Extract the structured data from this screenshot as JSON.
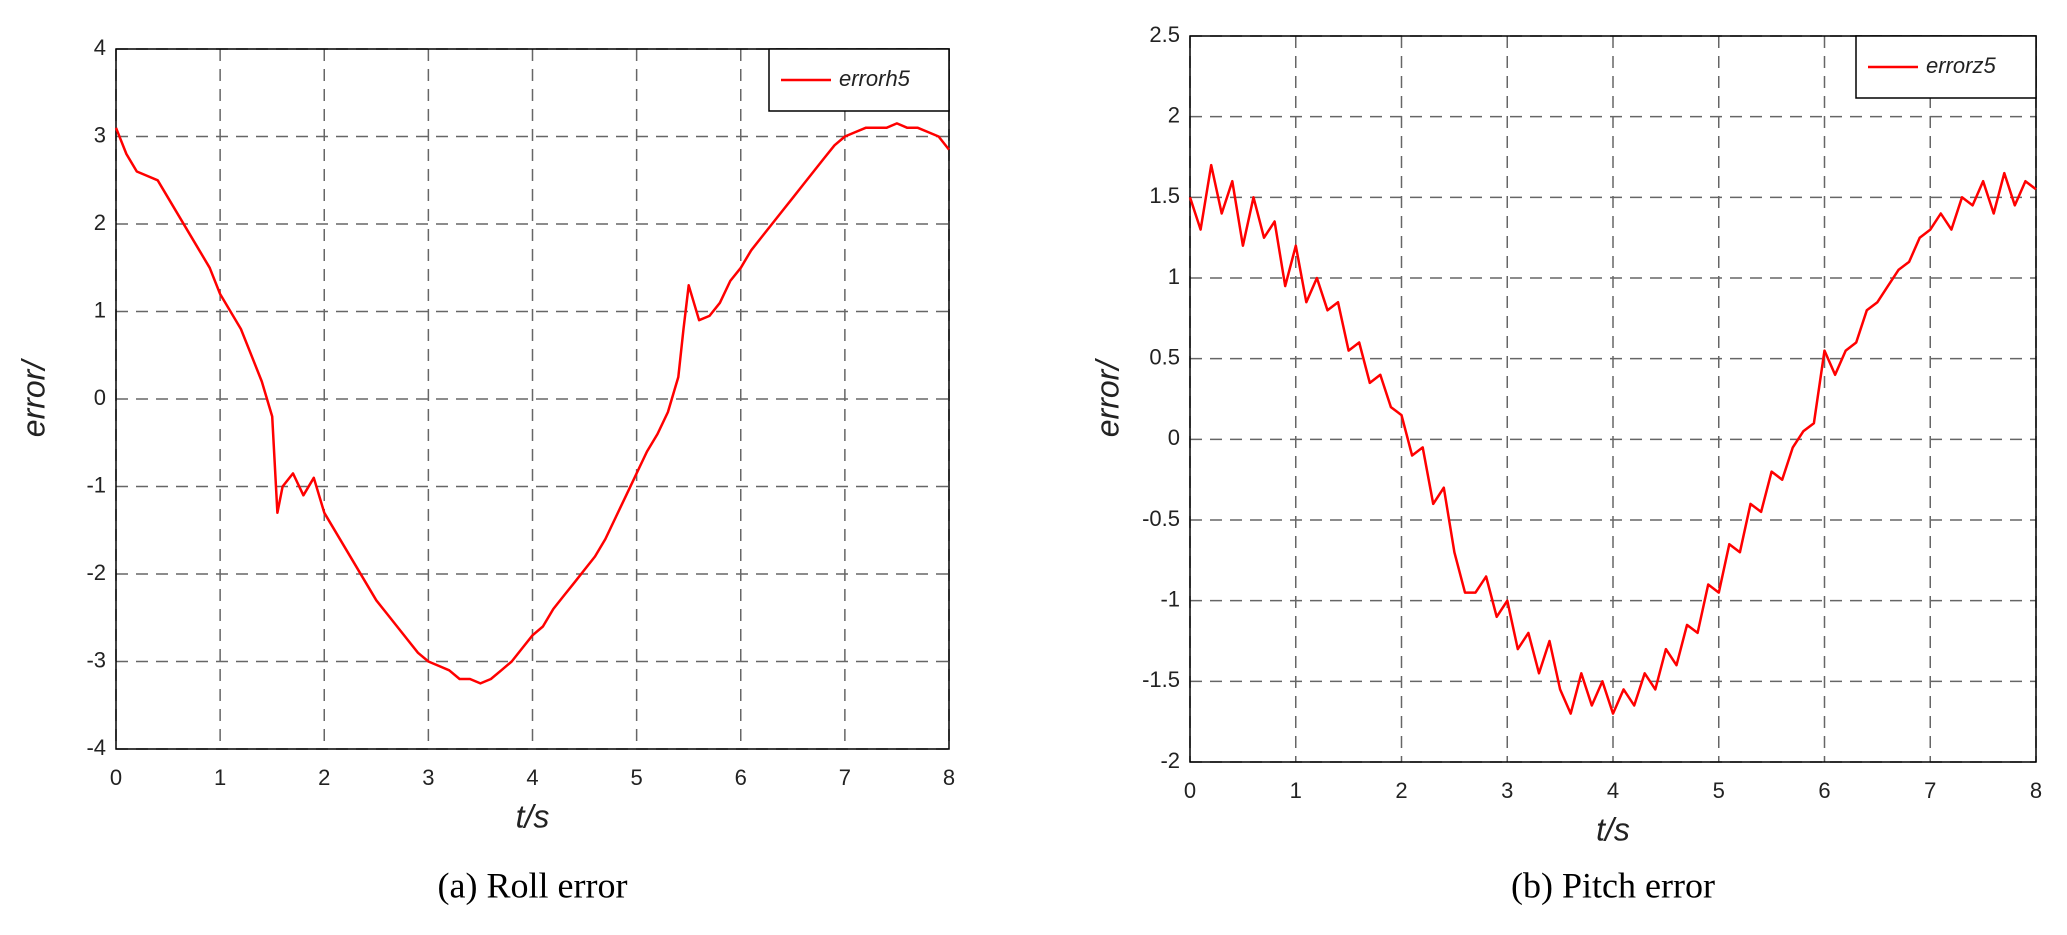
{
  "chart_data": [
    {
      "type": "line",
      "caption": "(a) Roll error",
      "xlabel": "t/s",
      "ylabel": "error/",
      "xlim": [
        0,
        8
      ],
      "xticks": [
        0,
        1,
        2,
        3,
        4,
        5,
        6,
        7,
        8
      ],
      "ylim": [
        -4,
        4
      ],
      "yticks": [
        -4,
        -3,
        -2,
        -1,
        0,
        1,
        2,
        3,
        4
      ],
      "grid": true,
      "legend": "upper right",
      "x": [
        0,
        0.1,
        0.2,
        0.3,
        0.4,
        0.5,
        0.6,
        0.7,
        0.8,
        0.9,
        1.0,
        1.1,
        1.2,
        1.3,
        1.4,
        1.5,
        1.55,
        1.6,
        1.7,
        1.8,
        1.9,
        2.0,
        2.1,
        2.2,
        2.3,
        2.4,
        2.5,
        2.6,
        2.7,
        2.8,
        2.9,
        3.0,
        3.1,
        3.2,
        3.3,
        3.4,
        3.5,
        3.6,
        3.7,
        3.8,
        3.9,
        4.0,
        4.1,
        4.2,
        4.3,
        4.4,
        4.5,
        4.6,
        4.7,
        4.8,
        4.9,
        5.0,
        5.1,
        5.2,
        5.3,
        5.4,
        5.45,
        5.5,
        5.6,
        5.7,
        5.8,
        5.9,
        6.0,
        6.1,
        6.2,
        6.3,
        6.4,
        6.5,
        6.6,
        6.7,
        6.8,
        6.9,
        7.0,
        7.1,
        7.2,
        7.3,
        7.4,
        7.5,
        7.6,
        7.7,
        7.8,
        7.9,
        8.0
      ],
      "series": [
        {
          "name": "errorh5",
          "color": "#ff0000",
          "values": [
            3.1,
            2.8,
            2.6,
            2.55,
            2.5,
            2.3,
            2.1,
            1.9,
            1.7,
            1.5,
            1.2,
            1.0,
            0.8,
            0.5,
            0.2,
            -0.2,
            -1.3,
            -1.0,
            -0.85,
            -1.1,
            -0.9,
            -1.3,
            -1.5,
            -1.7,
            -1.9,
            -2.1,
            -2.3,
            -2.45,
            -2.6,
            -2.75,
            -2.9,
            -3.0,
            -3.05,
            -3.1,
            -3.2,
            -3.2,
            -3.25,
            -3.2,
            -3.1,
            -3.0,
            -2.85,
            -2.7,
            -2.6,
            -2.4,
            -2.25,
            -2.1,
            -1.95,
            -1.8,
            -1.6,
            -1.35,
            -1.1,
            -0.85,
            -0.6,
            -0.4,
            -0.15,
            0.25,
            0.8,
            1.3,
            0.9,
            0.95,
            1.1,
            1.35,
            1.5,
            1.7,
            1.85,
            2.0,
            2.15,
            2.3,
            2.45,
            2.6,
            2.75,
            2.9,
            3.0,
            3.05,
            3.1,
            3.1,
            3.1,
            3.15,
            3.1,
            3.1,
            3.05,
            3.0,
            2.85
          ]
        }
      ]
    },
    {
      "type": "line",
      "caption": "(b) Pitch error",
      "xlabel": "t/s",
      "ylabel": "error/",
      "xlim": [
        0,
        8
      ],
      "xticks": [
        0,
        1,
        2,
        3,
        4,
        5,
        6,
        7,
        8
      ],
      "ylim": [
        -2,
        2.5
      ],
      "yticks": [
        -2,
        -1.5,
        -1,
        -0.5,
        0,
        0.5,
        1,
        1.5,
        2,
        2.5
      ],
      "grid": true,
      "legend": "upper right",
      "x": [
        0,
        0.1,
        0.2,
        0.3,
        0.4,
        0.5,
        0.6,
        0.7,
        0.8,
        0.9,
        1.0,
        1.1,
        1.2,
        1.3,
        1.4,
        1.5,
        1.6,
        1.7,
        1.8,
        1.9,
        2.0,
        2.1,
        2.2,
        2.3,
        2.4,
        2.5,
        2.6,
        2.7,
        2.8,
        2.9,
        3.0,
        3.1,
        3.2,
        3.3,
        3.4,
        3.5,
        3.6,
        3.7,
        3.8,
        3.9,
        4.0,
        4.1,
        4.2,
        4.3,
        4.4,
        4.5,
        4.6,
        4.7,
        4.8,
        4.9,
        5.0,
        5.1,
        5.2,
        5.3,
        5.4,
        5.5,
        5.6,
        5.7,
        5.8,
        5.9,
        6.0,
        6.1,
        6.2,
        6.3,
        6.4,
        6.5,
        6.6,
        6.7,
        6.8,
        6.9,
        7.0,
        7.1,
        7.2,
        7.3,
        7.4,
        7.5,
        7.6,
        7.7,
        7.8,
        7.9,
        8.0
      ],
      "series": [
        {
          "name": "errorz5",
          "color": "#ff0000",
          "values": [
            1.5,
            1.3,
            1.7,
            1.4,
            1.6,
            1.2,
            1.5,
            1.25,
            1.35,
            0.95,
            1.2,
            0.85,
            1.0,
            0.8,
            0.85,
            0.55,
            0.6,
            0.35,
            0.4,
            0.2,
            0.15,
            -0.1,
            -0.05,
            -0.4,
            -0.3,
            -0.7,
            -0.95,
            -0.95,
            -0.85,
            -1.1,
            -1.0,
            -1.3,
            -1.2,
            -1.45,
            -1.25,
            -1.55,
            -1.7,
            -1.45,
            -1.65,
            -1.5,
            -1.7,
            -1.55,
            -1.65,
            -1.45,
            -1.55,
            -1.3,
            -1.4,
            -1.15,
            -1.2,
            -0.9,
            -0.95,
            -0.65,
            -0.7,
            -0.4,
            -0.45,
            -0.2,
            -0.25,
            -0.05,
            0.05,
            0.1,
            0.55,
            0.4,
            0.55,
            0.6,
            0.8,
            0.85,
            0.95,
            1.05,
            1.1,
            1.25,
            1.3,
            1.4,
            1.3,
            1.5,
            1.45,
            1.6,
            1.4,
            1.65,
            1.45,
            1.6,
            1.55
          ]
        }
      ]
    }
  ]
}
